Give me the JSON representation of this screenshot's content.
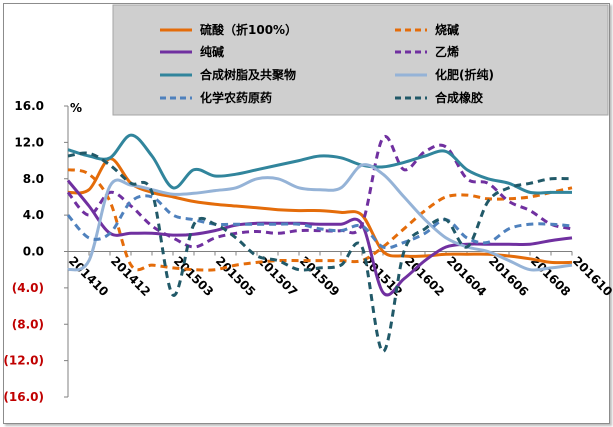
{
  "chart_data": {
    "type": "line",
    "ylabel": "%",
    "ylim": [
      -16,
      16
    ],
    "y_ticks": [
      {
        "value": 16,
        "label": "16.0"
      },
      {
        "value": 12,
        "label": "12.0"
      },
      {
        "value": 8,
        "label": "8.0"
      },
      {
        "value": 4,
        "label": "4.0"
      },
      {
        "value": 0,
        "label": "0.0"
      },
      {
        "value": -4,
        "label": "(4.0)"
      },
      {
        "value": -8,
        "label": "(8.0)"
      },
      {
        "value": -12,
        "label": "(12.0)"
      },
      {
        "value": -16,
        "label": "(16.0)"
      }
    ],
    "x": [
      "201410",
      "201411",
      "201412",
      "201501",
      "201502",
      "201503",
      "201504",
      "201505",
      "201506",
      "201507",
      "201508",
      "201509",
      "201510",
      "201511",
      "201512",
      "201601",
      "201602",
      "201603",
      "201604",
      "201605",
      "201606",
      "201607",
      "201608",
      "201609",
      "201610"
    ],
    "x_tick_labels": [
      "201410",
      "201412",
      "201503",
      "201505",
      "201507",
      "201509",
      "201512",
      "201602",
      "201604",
      "201606",
      "201608",
      "201610"
    ],
    "x_tick_positions": [
      0,
      2,
      5,
      7,
      9,
      11,
      14,
      16,
      18,
      20,
      22,
      24
    ],
    "legend_position": "top",
    "grid": false,
    "series": [
      {
        "name": "硫酸（折100%）",
        "color": "#e46c0a",
        "dash": "solid",
        "values": [
          6.5,
          6.8,
          10.2,
          7.5,
          6.5,
          6.0,
          5.5,
          5.2,
          5.0,
          4.8,
          4.6,
          4.5,
          4.5,
          4.3,
          4.0,
          0.0,
          -0.5,
          -0.5,
          -0.3,
          -0.3,
          -0.3,
          -0.5,
          -0.8,
          -1.2,
          -1.2
        ]
      },
      {
        "name": "烧碱",
        "color": "#e46c0a",
        "dash": "dash",
        "values": [
          9.0,
          8.5,
          5.5,
          -1.5,
          -1.5,
          -1.8,
          -2.0,
          -2.0,
          -1.5,
          -1.2,
          -1.0,
          -1.0,
          -1.0,
          -1.0,
          -1.0,
          0.5,
          2.5,
          4.5,
          6.0,
          6.2,
          5.8,
          5.8,
          6.0,
          6.5,
          7.0
        ]
      },
      {
        "name": "纯碱",
        "color": "#7030a0",
        "dash": "solid",
        "values": [
          7.8,
          5.0,
          2.0,
          2.0,
          2.0,
          1.8,
          1.9,
          2.3,
          2.9,
          3.1,
          3.1,
          3.1,
          3.0,
          3.0,
          3.0,
          -4.5,
          -3.0,
          -1.0,
          0.5,
          0.8,
          0.8,
          0.8,
          0.8,
          1.2,
          1.5
        ]
      },
      {
        "name": "乙烯",
        "color": "#7030a0",
        "dash": "dash",
        "values": [
          6.5,
          4.0,
          6.5,
          5.0,
          2.8,
          1.5,
          0.5,
          1.5,
          2.0,
          2.2,
          2.0,
          2.3,
          2.3,
          2.3,
          3.0,
          12.5,
          9.0,
          11.0,
          11.5,
          8.0,
          7.5,
          5.5,
          4.5,
          3.0,
          2.5
        ]
      },
      {
        "name": "合成树脂及共聚物",
        "color": "#31859c",
        "dash": "solid",
        "values": [
          11.2,
          10.5,
          10.3,
          12.8,
          10.5,
          7.0,
          9.0,
          8.3,
          8.5,
          9.0,
          9.5,
          10.0,
          10.5,
          10.3,
          9.5,
          9.3,
          9.8,
          10.5,
          11.0,
          9.0,
          8.0,
          7.5,
          6.5,
          6.5,
          6.5
        ]
      },
      {
        "name": "化肥(折纯)",
        "color": "#95b3d7",
        "dash": "solid",
        "values": [
          -2.0,
          -1.0,
          7.2,
          7.3,
          6.8,
          6.3,
          6.4,
          6.7,
          7.0,
          8.0,
          8.0,
          7.0,
          6.8,
          7.0,
          9.5,
          8.5,
          6.0,
          3.5,
          1.5,
          0.5,
          0.0,
          -1.0,
          -2.0,
          -1.8,
          -1.5
        ]
      },
      {
        "name": "化学农药原药",
        "color": "#4f81bd",
        "dash": "dash",
        "values": [
          4.0,
          1.5,
          2.0,
          5.5,
          6.0,
          4.0,
          3.5,
          3.0,
          3.0,
          3.0,
          3.0,
          3.0,
          2.5,
          2.3,
          2.8,
          0.5,
          1.0,
          2.0,
          3.5,
          1.5,
          1.0,
          2.5,
          3.0,
          3.0,
          2.8
        ]
      },
      {
        "name": "合成橡胶",
        "color": "#215968",
        "dash": "dash",
        "values": [
          10.5,
          10.8,
          9.5,
          7.5,
          6.5,
          -4.8,
          3.0,
          3.0,
          1.5,
          -0.5,
          -1.0,
          -2.0,
          -1.8,
          -1.5,
          0.5,
          -11.0,
          0.0,
          2.5,
          3.5,
          0.5,
          5.5,
          7.0,
          7.5,
          8.0,
          8.0
        ]
      }
    ]
  }
}
